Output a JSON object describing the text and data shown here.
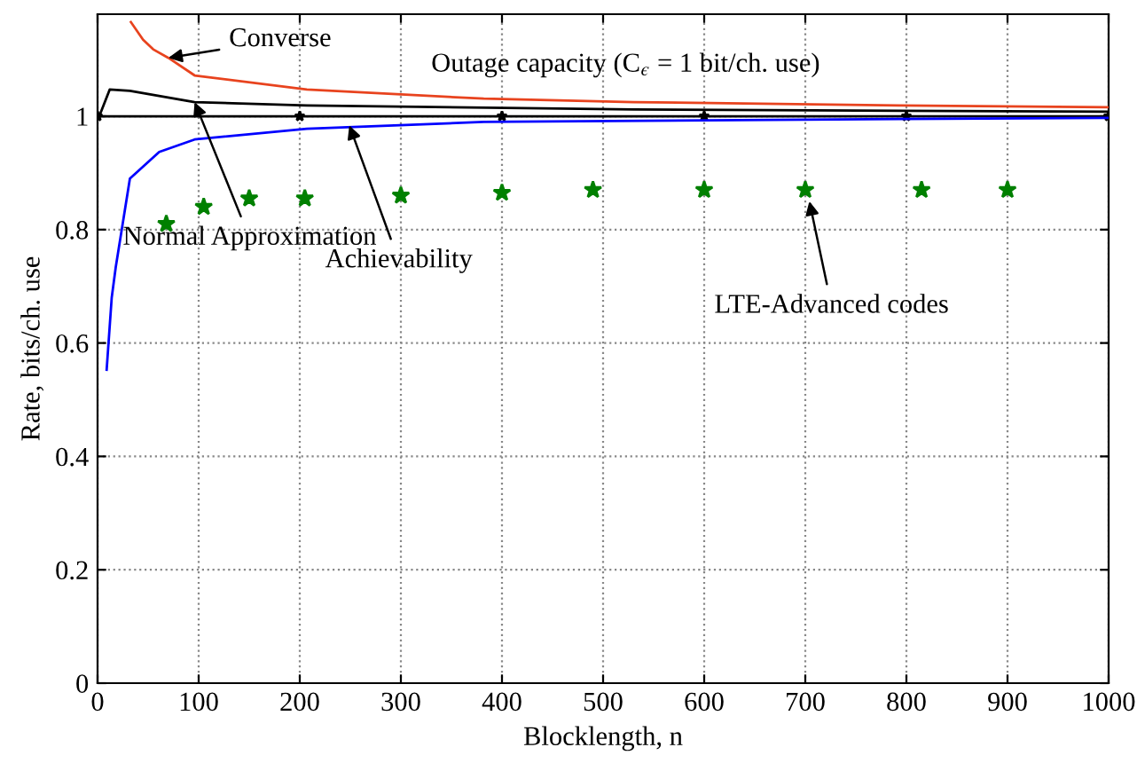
{
  "chart_data": {
    "type": "line",
    "xlabel": "Blocklength, n",
    "ylabel": "Rate, bits/ch. use",
    "xlim": [
      0,
      1000
    ],
    "xticks": [
      0,
      100,
      200,
      300,
      400,
      500,
      600,
      700,
      800,
      900,
      1000
    ],
    "ylim": [
      0,
      1.18
    ],
    "yticks": [
      0,
      0.2,
      0.4,
      0.6,
      0.8,
      1
    ],
    "grid": true,
    "legend": false,
    "series": [
      {
        "color": "#e8431e",
        "marker": "none",
        "x": [
          33,
          45,
          55,
          70,
          96,
          207,
          382,
          530,
          793,
          1000
        ],
        "values": [
          1.166,
          1.135,
          1.118,
          1.103,
          1.072,
          1.047,
          1.031,
          1.025,
          1.019,
          1.016
        ]
      },
      {
        "color": "#000000",
        "marker": "none",
        "x": [
          3,
          12,
          32,
          96,
          207,
          530,
          1000
        ],
        "values": [
          1.006,
          1.047,
          1.045,
          1.025,
          1.019,
          1.012,
          1.008
        ]
      },
      {
        "color": "#000000",
        "marker": "star",
        "x": [
          0,
          200,
          400,
          600,
          800,
          1000
        ],
        "values": [
          1,
          1,
          1,
          1,
          1,
          1
        ]
      },
      {
        "color": "#0000ff",
        "marker": "none",
        "x": [
          9,
          14,
          18,
          32,
          61,
          96,
          207,
          382,
          793,
          1000
        ],
        "values": [
          0.553,
          0.68,
          0.734,
          0.89,
          0.937,
          0.959,
          0.978,
          0.99,
          0.995,
          0.997
        ]
      },
      {
        "type": "scatter",
        "color": "#008000",
        "marker": "star",
        "x": [
          68,
          105,
          150,
          205,
          300,
          400,
          490,
          600,
          700,
          815,
          900
        ],
        "values": [
          0.81,
          0.84,
          0.855,
          0.855,
          0.86,
          0.865,
          0.87,
          0.87,
          0.87,
          0.87,
          0.87
        ]
      }
    ],
    "annotations": [
      {
        "text": "Converse",
        "x": 70,
        "y": 1.103
      },
      "Outage capacity (C$_{ϵ}$ = 1 bit/ch. use)",
      {
        "text": "Normal Approximation",
        "x": 96,
        "y": 1.025
      },
      {
        "text": "Achievability",
        "x": 249,
        "y": 0.984
      },
      {
        "text": "LTE-Advanced codes",
        "x": 704,
        "y": 0.85
      }
    ]
  }
}
